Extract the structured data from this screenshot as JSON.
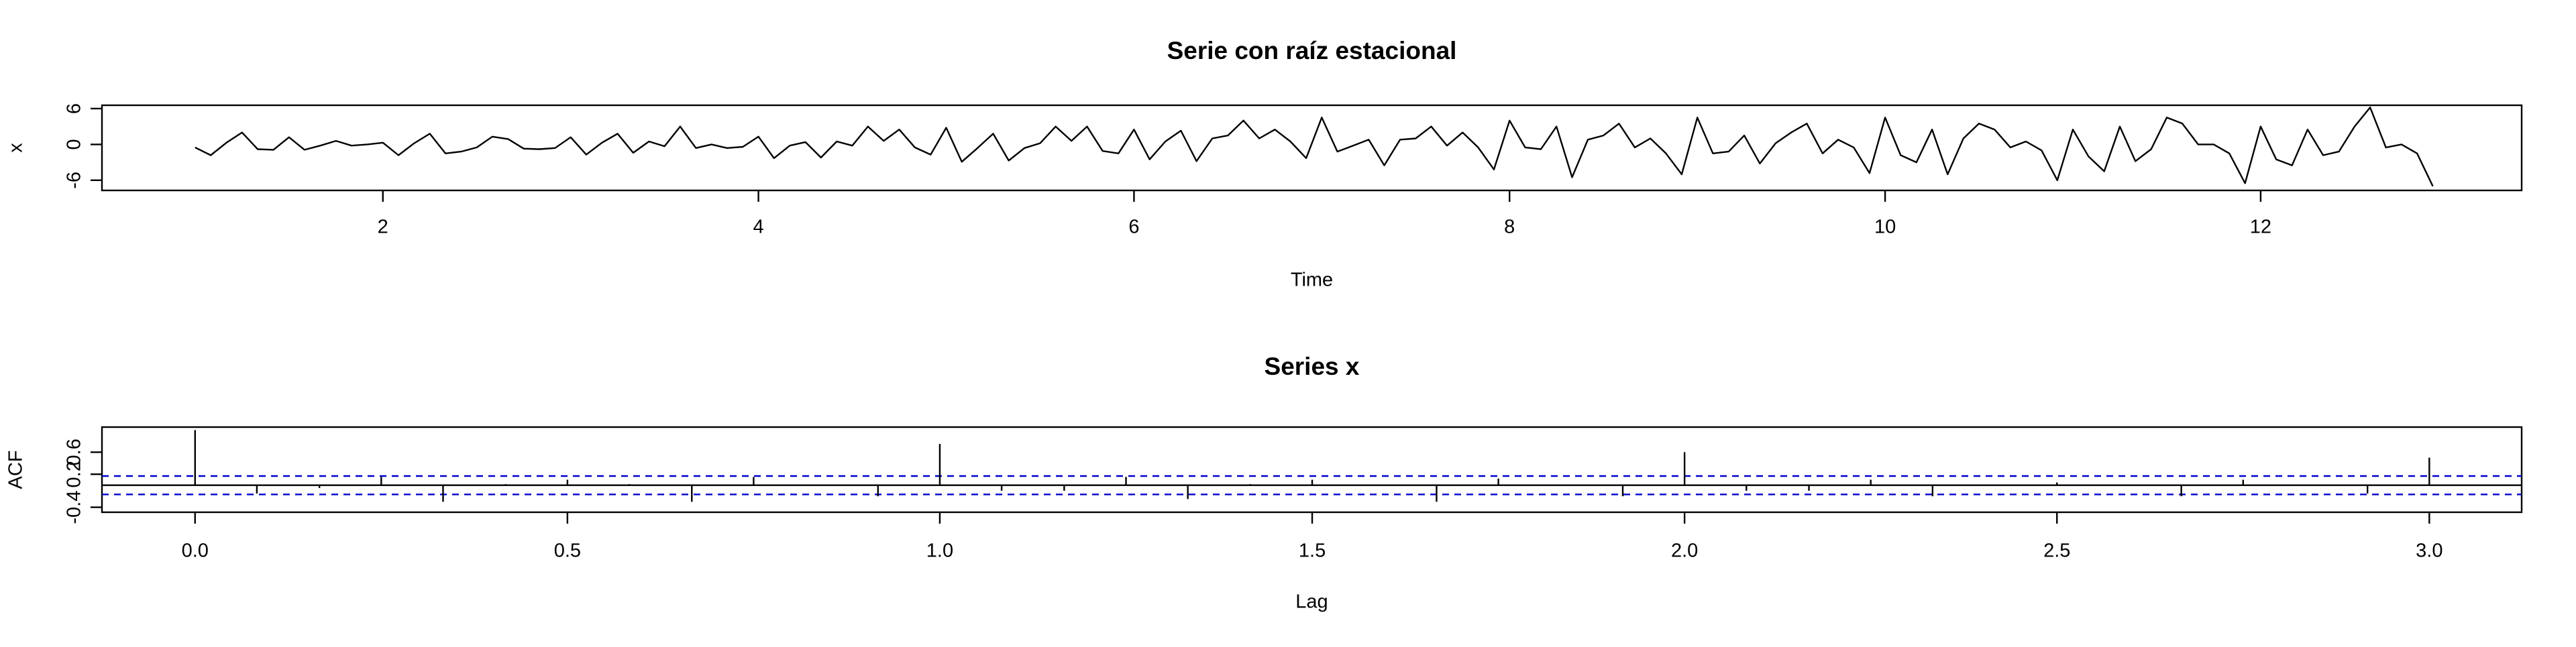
{
  "chart_data": [
    {
      "type": "line",
      "title": "Serie con raíz estacional",
      "x_label": "Time",
      "y_label": "x",
      "color": "#000000",
      "x": [
        1,
        1.083,
        1.167,
        1.25,
        1.333,
        1.417,
        1.5,
        1.583,
        1.667,
        1.75,
        1.833,
        1.917,
        2,
        2.083,
        2.167,
        2.25,
        2.333,
        2.417,
        2.5,
        2.583,
        2.667,
        2.75,
        2.833,
        2.917,
        3,
        3.083,
        3.167,
        3.25,
        3.333,
        3.417,
        3.5,
        3.583,
        3.667,
        3.75,
        3.833,
        3.917,
        4,
        4.083,
        4.167,
        4.25,
        4.333,
        4.417,
        4.5,
        4.583,
        4.667,
        4.75,
        4.833,
        4.917,
        5,
        5.083,
        5.167,
        5.25,
        5.333,
        5.417,
        5.5,
        5.583,
        5.667,
        5.75,
        5.833,
        5.917,
        6,
        6.083,
        6.167,
        6.25,
        6.333,
        6.417,
        6.5,
        6.583,
        6.667,
        6.75,
        6.833,
        6.917,
        7,
        7.083,
        7.167,
        7.25,
        7.333,
        7.417,
        7.5,
        7.583,
        7.667,
        7.75,
        7.833,
        7.917,
        8,
        8.083,
        8.167,
        8.25,
        8.333,
        8.417,
        8.5,
        8.583,
        8.667,
        8.75,
        8.833,
        8.917,
        9,
        9.083,
        9.167,
        9.25,
        9.333,
        9.417,
        9.5,
        9.583,
        9.667,
        9.75,
        9.833,
        9.917,
        10,
        10.083,
        10.167,
        10.25,
        10.333,
        10.417,
        10.5,
        10.583,
        10.667,
        10.75,
        10.833,
        10.917,
        11,
        11.083,
        11.167,
        11.25,
        11.333,
        11.417,
        11.5,
        11.583,
        11.667,
        11.75,
        11.833,
        11.917,
        12,
        12.083,
        12.167,
        12.25,
        12.333,
        12.417,
        12.5,
        12.583,
        12.667,
        12.75,
        12.833,
        12.917
      ],
      "values": [
        -0.5,
        -1.8,
        0.3,
        2.0,
        -0.8,
        -0.9,
        1.2,
        -0.9,
        -0.2,
        0.6,
        -0.2,
        0.0,
        0.3,
        -1.8,
        0.2,
        1.8,
        -1.5,
        -1.2,
        -0.5,
        1.3,
        0.9,
        -0.7,
        -0.8,
        -0.6,
        1.2,
        -1.7,
        0.3,
        1.8,
        -1.4,
        0.5,
        -0.3,
        3.0,
        -0.6,
        0.0,
        -0.6,
        -0.4,
        1.3,
        -2.3,
        -0.2,
        0.4,
        -2.2,
        0.5,
        -0.2,
        3.0,
        0.6,
        2.5,
        -0.5,
        -1.7,
        2.8,
        -2.9,
        -0.6,
        1.8,
        -2.7,
        -0.6,
        0.2,
        3.0,
        0.6,
        3.0,
        -1.1,
        -1.5,
        2.5,
        -2.5,
        0.5,
        2.3,
        -2.8,
        1.0,
        1.5,
        4.0,
        1.0,
        2.5,
        0.5,
        -2.3,
        4.5,
        -1.2,
        -0.2,
        0.8,
        -3.5,
        0.8,
        1.0,
        3.0,
        -0.2,
        2.0,
        -0.5,
        -4.2,
        4.0,
        -0.5,
        -0.8,
        3.0,
        -5.5,
        0.8,
        1.5,
        3.5,
        -0.5,
        1.0,
        -1.5,
        -5.0,
        4.5,
        -1.5,
        -1.2,
        1.5,
        -3.2,
        0.2,
        2.0,
        3.5,
        -1.5,
        0.8,
        -0.5,
        -4.8,
        4.5,
        -1.8,
        -3.0,
        2.5,
        -5.0,
        1.0,
        3.5,
        2.5,
        -0.5,
        0.5,
        -1.0,
        -6.0,
        2.5,
        -2.0,
        -4.5,
        3.0,
        -2.8,
        -0.8,
        4.5,
        3.5,
        0.0,
        0.0,
        -1.5,
        -6.5,
        3.0,
        -2.5,
        -3.5,
        2.5,
        -1.8,
        -1.2,
        3.0,
        6.2,
        -0.5,
        0.0,
        -1.5,
        -7.0
      ],
      "xlim": [
        0.504,
        13.39
      ],
      "xticks": [
        2,
        4,
        6,
        8,
        10,
        12
      ],
      "ylim": [
        -7.7,
        6.56
      ],
      "yticks": [
        -6,
        0,
        6
      ]
    },
    {
      "type": "acf",
      "title": "Series  x",
      "x_label": "Lag",
      "y_label": "ACF",
      "color": "#000000",
      "ci_color": "#0000cc",
      "x": [
        0,
        0.083,
        0.167,
        0.25,
        0.333,
        0.417,
        0.5,
        0.583,
        0.667,
        0.75,
        0.833,
        0.917,
        1,
        1.083,
        1.167,
        1.25,
        1.333,
        1.417,
        1.5,
        1.583,
        1.667,
        1.75,
        1.833,
        1.917,
        2,
        2.083,
        2.167,
        2.25,
        2.333,
        2.417,
        2.5,
        2.583,
        2.667,
        2.75,
        2.833,
        2.917,
        3
      ],
      "values": [
        1,
        -0.15,
        -0.05,
        0.15,
        -0.3,
        0.02,
        0.1,
        0.02,
        -0.3,
        0.15,
        0.0,
        -0.2,
        0.75,
        -0.1,
        -0.1,
        0.15,
        -0.25,
        0.02,
        0.1,
        0.0,
        -0.3,
        0.12,
        0.0,
        -0.2,
        0.6,
        -0.1,
        -0.1,
        0.1,
        -0.2,
        0.0,
        0.05,
        0.0,
        -0.2,
        0.1,
        0.0,
        -0.15,
        0.5
      ],
      "ci": [
        -0.167,
        0.167
      ],
      "xlim": [
        -0.125,
        3.124
      ],
      "xticks": [
        {
          "value": 0,
          "label": "0.0"
        },
        0.5,
        {
          "value": 1,
          "label": "1.0"
        },
        1.5,
        {
          "value": 2,
          "label": "2.0"
        },
        2.5,
        {
          "value": 3,
          "label": "3.0"
        }
      ],
      "ylim": [
        -0.49,
        1.055
      ],
      "yticks": [
        -0.4,
        0.2,
        0.6
      ]
    }
  ]
}
